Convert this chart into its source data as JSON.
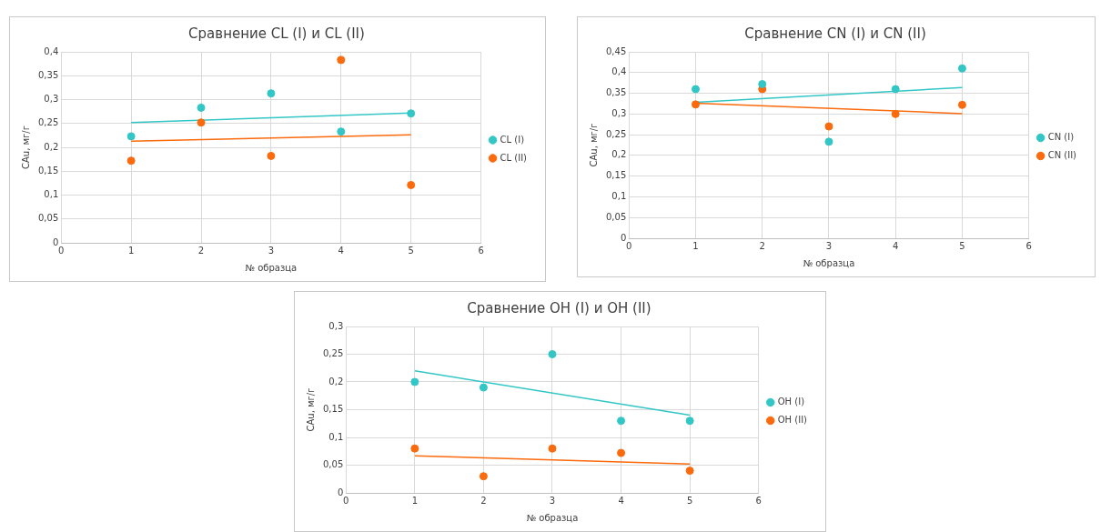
{
  "chart_data": [
    {
      "type": "scatter",
      "title": "Сравнение CL (I) и CL (II)",
      "xlabel": "№ образца",
      "ylabel": "CAu, мг/г",
      "xlim": [
        0,
        6
      ],
      "xticks": [
        0,
        1,
        2,
        3,
        4,
        5,
        6
      ],
      "ylim": [
        0,
        0.4
      ],
      "yticks": [
        {
          "value": 0,
          "label": "0"
        },
        {
          "value": 0.05,
          "label": "0,05"
        },
        {
          "value": 0.1,
          "label": "0,1"
        },
        {
          "value": 0.15,
          "label": "0,15"
        },
        {
          "value": 0.2,
          "label": "0,2"
        },
        {
          "value": 0.25,
          "label": "0,25"
        },
        {
          "value": 0.3,
          "label": "0,3"
        },
        {
          "value": 0.35,
          "label": "0,35"
        },
        {
          "value": 0.4,
          "label": "0,4"
        }
      ],
      "grid": true,
      "legend": "right",
      "marker": "circle",
      "series": [
        {
          "name": "CL (I)",
          "color": "#33c6c6",
          "x": [
            1,
            2,
            3,
            4,
            5
          ],
          "values": [
            0.223,
            0.283,
            0.313,
            0.233,
            0.271
          ]
        },
        {
          "name": "CL (II)",
          "color": "#fb6a0c",
          "x": [
            1,
            2,
            3,
            4,
            5
          ],
          "values": [
            0.172,
            0.252,
            0.182,
            0.383,
            0.121
          ]
        },
        {
          "type": "line",
          "marker": "none",
          "color": "#33c6c6",
          "x": [
            1,
            5
          ],
          "values": [
            0.252,
            0.272
          ]
        },
        {
          "type": "line",
          "marker": "none",
          "color": "#fb6a0c",
          "x": [
            1,
            5
          ],
          "values": [
            0.213,
            0.226
          ]
        }
      ]
    },
    {
      "type": "scatter",
      "title": "Сравнение CN (I) и CN (II)",
      "xlabel": "№ образца",
      "ylabel": "CAu, мг/г",
      "xlim": [
        0,
        6
      ],
      "xticks": [
        0,
        1,
        2,
        3,
        4,
        5,
        6
      ],
      "ylim": [
        0,
        0.45
      ],
      "yticks": [
        {
          "value": 0,
          "label": "0"
        },
        {
          "value": 0.05,
          "label": "0,05"
        },
        {
          "value": 0.1,
          "label": "0,1"
        },
        {
          "value": 0.15,
          "label": "0,15"
        },
        {
          "value": 0.2,
          "label": "0,2"
        },
        {
          "value": 0.25,
          "label": "0,25"
        },
        {
          "value": 0.3,
          "label": "0,3"
        },
        {
          "value": 0.35,
          "label": "0,35"
        },
        {
          "value": 0.4,
          "label": "0,4"
        },
        {
          "value": 0.45,
          "label": "0,45"
        }
      ],
      "grid": true,
      "legend": "right",
      "marker": "circle",
      "series": [
        {
          "name": "CN (I)",
          "color": "#33c6c6",
          "x": [
            1,
            2,
            3,
            4,
            5
          ],
          "values": [
            0.36,
            0.372,
            0.233,
            0.36,
            0.41
          ]
        },
        {
          "name": "CN (II)",
          "color": "#fb6a0c",
          "x": [
            1,
            2,
            3,
            4,
            5
          ],
          "values": [
            0.323,
            0.36,
            0.27,
            0.3,
            0.322
          ]
        },
        {
          "type": "line",
          "marker": "none",
          "color": "#33c6c6",
          "x": [
            1,
            5
          ],
          "values": [
            0.328,
            0.364
          ]
        },
        {
          "type": "line",
          "marker": "none",
          "color": "#fb6a0c",
          "x": [
            1,
            5
          ],
          "values": [
            0.326,
            0.301
          ]
        }
      ]
    },
    {
      "type": "scatter",
      "title": "Сравнение OH (I) и OH (II)",
      "xlabel": "№ образца",
      "ylabel": "CAu, мг/г",
      "xlim": [
        0,
        6
      ],
      "xticks": [
        0,
        1,
        2,
        3,
        4,
        5,
        6
      ],
      "ylim": [
        0,
        0.3
      ],
      "yticks": [
        {
          "value": 0,
          "label": "0"
        },
        {
          "value": 0.05,
          "label": "0,05"
        },
        {
          "value": 0.1,
          "label": "0,1"
        },
        {
          "value": 0.15,
          "label": "0,15"
        },
        {
          "value": 0.2,
          "label": "0,2"
        },
        {
          "value": 0.25,
          "label": "0,25"
        },
        {
          "value": 0.3,
          "label": "0,3"
        }
      ],
      "grid": true,
      "legend": "right",
      "marker": "circle",
      "series": [
        {
          "name": "OH (I)",
          "color": "#33c6c6",
          "x": [
            1,
            2,
            3,
            4,
            5
          ],
          "values": [
            0.2,
            0.19,
            0.25,
            0.13,
            0.13
          ]
        },
        {
          "name": "OH (II)",
          "color": "#fb6a0c",
          "x": [
            1,
            2,
            3,
            4,
            5
          ],
          "values": [
            0.08,
            0.03,
            0.08,
            0.072,
            0.04
          ]
        },
        {
          "type": "line",
          "marker": "none",
          "color": "#33c6c6",
          "x": [
            1,
            5
          ],
          "values": [
            0.22,
            0.14
          ]
        },
        {
          "type": "line",
          "marker": "none",
          "color": "#fb6a0c",
          "x": [
            1,
            5
          ],
          "values": [
            0.067,
            0.052
          ]
        }
      ]
    }
  ]
}
